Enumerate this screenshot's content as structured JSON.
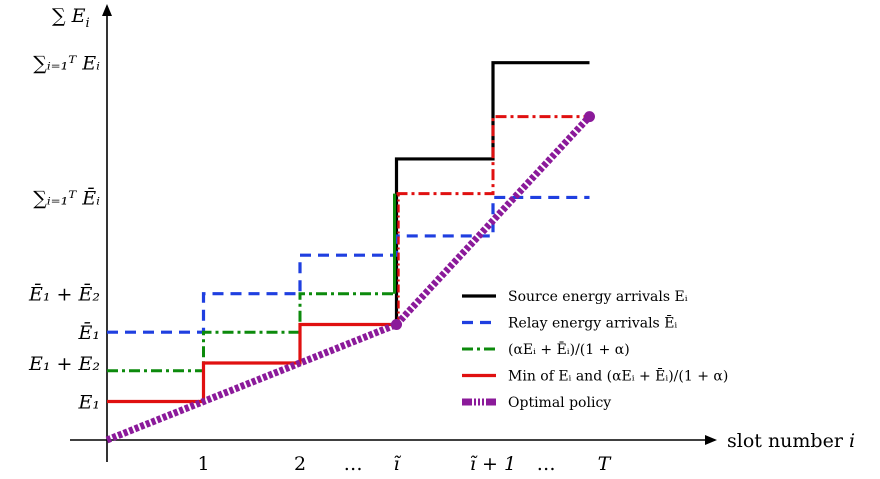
{
  "chart_data": {
    "type": "line",
    "title": "",
    "ylabel": "∑ E_i",
    "xlabel": "slot number i",
    "x_ticks": [
      "1",
      "2",
      "…",
      "ĩ",
      "ĩ + 1",
      "…",
      "T"
    ],
    "y_ticks": [
      "E₁",
      "E₁ + E₂",
      "Ē₁",
      "Ē₁ + Ē₂",
      "∑ᵢ₌₁ᵀ Ēᵢ",
      "∑ᵢ₌₁ᵀ Eᵢ"
    ],
    "x": [
      0,
      1,
      2,
      3,
      4,
      5
    ],
    "xlim": [
      0,
      5.35
    ],
    "ylim": [
      0,
      10.3
    ],
    "legend_position": "bottom-right",
    "grid": false,
    "series": [
      {
        "name": "Source energy arrivals Eᵢ",
        "kind": "step",
        "color": "#000000",
        "values": [
          null,
          null,
          null,
          7.3,
          7.3,
          9.8
        ]
      },
      {
        "name": "Relay energy arrivals Ēᵢ",
        "kind": "step",
        "color": "#1f3fe0",
        "values": [
          2.8,
          3.8,
          4.8,
          5.3,
          6.3,
          6.3
        ]
      },
      {
        "name": "(αEᵢ + Ēᵢ)/(1 + α)",
        "kind": "step",
        "color": "#0c8a0c",
        "values": [
          1.8,
          2.8,
          3.8,
          6.4,
          8.4,
          8.4
        ]
      },
      {
        "name": "Min of Eᵢ and (αEᵢ + Ēᵢ)/(1 + α)",
        "kind": "step",
        "color": "#e01010",
        "values": [
          1.0,
          2.0,
          3.0,
          6.4,
          8.4,
          8.4
        ]
      },
      {
        "name": "Optimal policy",
        "kind": "line",
        "color": "#8b1a9a",
        "x": [
          0,
          3,
          5
        ],
        "values": [
          0,
          3.0,
          8.4
        ]
      }
    ]
  }
}
